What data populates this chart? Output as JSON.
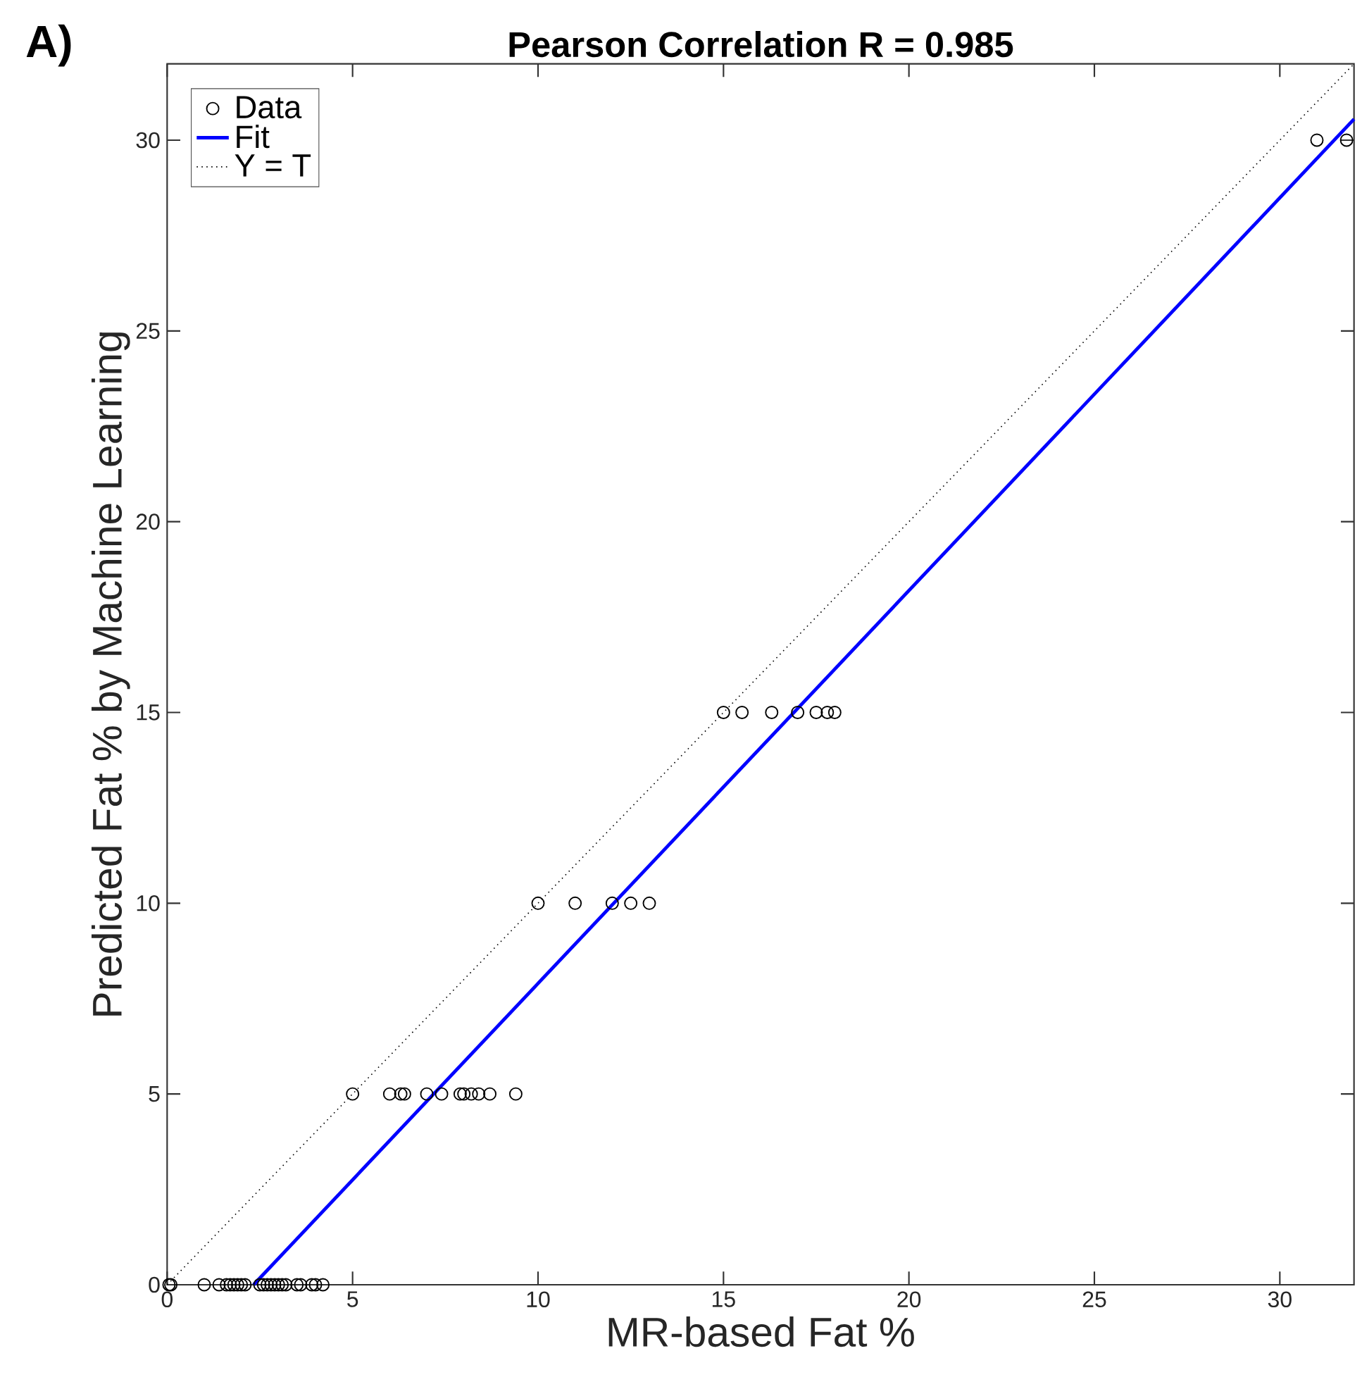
{
  "chart_data": {
    "type": "scatter",
    "title": "Pearson Correlation R = 0.985",
    "xlabel": "MR-based Fat %",
    "ylabel": "Predicted Fat % by Machine Learning",
    "annotations": [
      "A)"
    ],
    "xlim": [
      0,
      32
    ],
    "ylim": [
      0,
      32
    ],
    "xticks": [
      0,
      5,
      10,
      15,
      20,
      25,
      30
    ],
    "yticks": [
      0,
      5,
      10,
      15,
      20,
      25,
      30
    ],
    "legend": "top left",
    "series": [
      {
        "name": "Data",
        "marker": "circle",
        "color": "#000000",
        "x": [
          0.05,
          0.1,
          1.0,
          1.4,
          1.6,
          1.7,
          1.8,
          1.9,
          2.0,
          2.1,
          2.5,
          2.6,
          2.7,
          2.8,
          2.9,
          3.0,
          3.1,
          3.2,
          3.5,
          3.6,
          3.9,
          4.0,
          4.2,
          5.0,
          6.0,
          6.3,
          6.4,
          7.0,
          7.4,
          7.9,
          8.0,
          8.2,
          8.4,
          8.7,
          9.4,
          10.0,
          11.0,
          12.0,
          12.5,
          13.0,
          15.0,
          15.5,
          16.3,
          17.0,
          17.5,
          17.8,
          18.0,
          31.0,
          31.8
        ],
        "values": [
          0,
          0,
          0,
          0,
          0,
          0,
          0,
          0,
          0,
          0,
          0,
          0,
          0,
          0,
          0,
          0,
          0,
          0,
          0,
          0,
          0,
          0,
          0,
          5,
          5,
          5,
          5,
          5,
          5,
          5,
          5,
          5,
          5,
          5,
          5,
          10,
          10,
          10,
          10,
          10,
          15,
          15,
          15,
          15,
          15,
          15,
          15,
          30,
          30
        ]
      },
      {
        "name": "Fit",
        "type": "line",
        "line_style": "solid",
        "color": "#0000ff",
        "x": [
          2.33,
          32
        ],
        "values": [
          0,
          30.55
        ]
      },
      {
        "name": "Y = T",
        "type": "line",
        "line_style": "dotted",
        "color": "#000000",
        "x": [
          0,
          32
        ],
        "values": [
          0,
          32
        ]
      }
    ]
  }
}
